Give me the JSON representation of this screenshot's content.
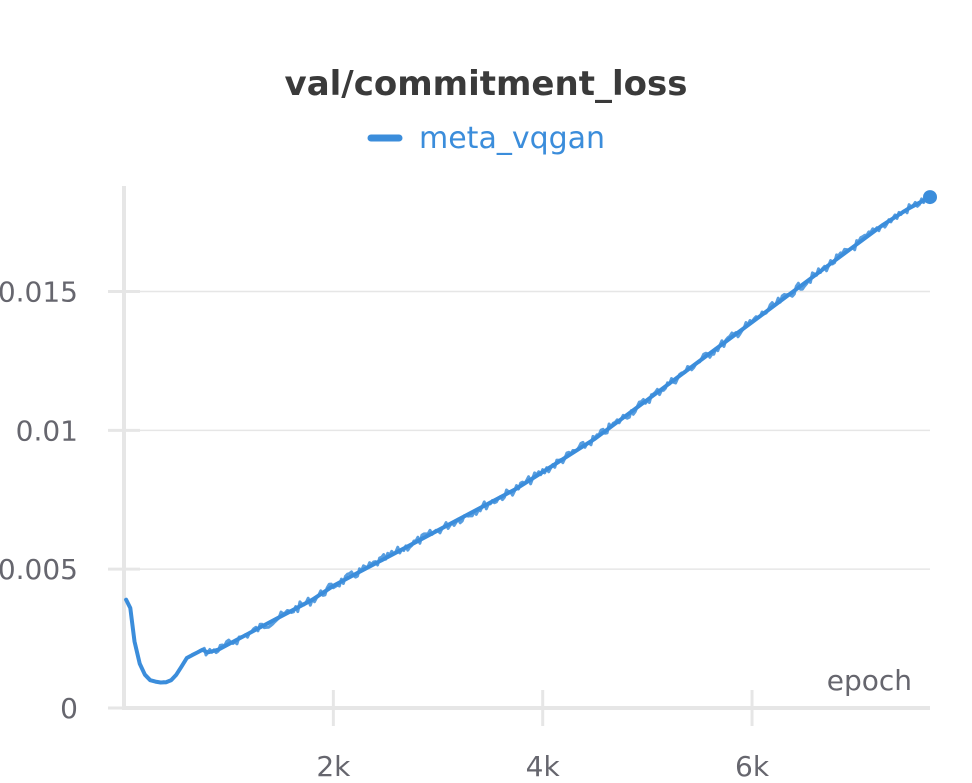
{
  "chart_data": {
    "type": "line",
    "title": "val/commitment_loss",
    "xlabel": "epoch",
    "ylabel": "",
    "xlim": [
      0,
      7700
    ],
    "ylim": [
      0,
      0.0188
    ],
    "x_ticks": [
      {
        "value": 2000,
        "label": "2k"
      },
      {
        "value": 4000,
        "label": "4k"
      },
      {
        "value": 6000,
        "label": "6k"
      }
    ],
    "y_ticks": [
      {
        "value": 0,
        "label": "0"
      },
      {
        "value": 0.005,
        "label": "0.005"
      },
      {
        "value": 0.01,
        "label": "0.01"
      },
      {
        "value": 0.015,
        "label": "0.015"
      }
    ],
    "grid": true,
    "legend": "top-center",
    "series": [
      {
        "name": "meta_vqgan",
        "color": "#3b8ddb",
        "x": [
          20,
          60,
          100,
          150,
          200,
          250,
          300,
          350,
          400,
          450,
          500,
          550,
          600,
          650,
          700,
          750,
          800,
          900,
          1000,
          1200,
          1400,
          1600,
          1800,
          2000,
          2250,
          2500,
          2750,
          3000,
          3250,
          3500,
          3750,
          4000,
          4250,
          4500,
          4750,
          5000,
          5250,
          5500,
          5750,
          6000,
          6250,
          6500,
          6750,
          7000,
          7250,
          7500,
          7700
        ],
        "y": [
          0.0039,
          0.0036,
          0.0024,
          0.0016,
          0.0012,
          0.001,
          0.00095,
          0.00092,
          0.00093,
          0.001,
          0.0012,
          0.0015,
          0.0018,
          0.0019,
          0.002,
          0.0021,
          0.002,
          0.0021,
          0.0023,
          0.0027,
          0.0031,
          0.0035,
          0.0039,
          0.0044,
          0.0049,
          0.0054,
          0.0059,
          0.0064,
          0.0069,
          0.0074,
          0.0079,
          0.0085,
          0.0091,
          0.0097,
          0.0104,
          0.0111,
          0.0118,
          0.0125,
          0.0132,
          0.0139,
          0.0146,
          0.0153,
          0.016,
          0.0167,
          0.0174,
          0.018,
          0.0184
        ]
      }
    ]
  }
}
